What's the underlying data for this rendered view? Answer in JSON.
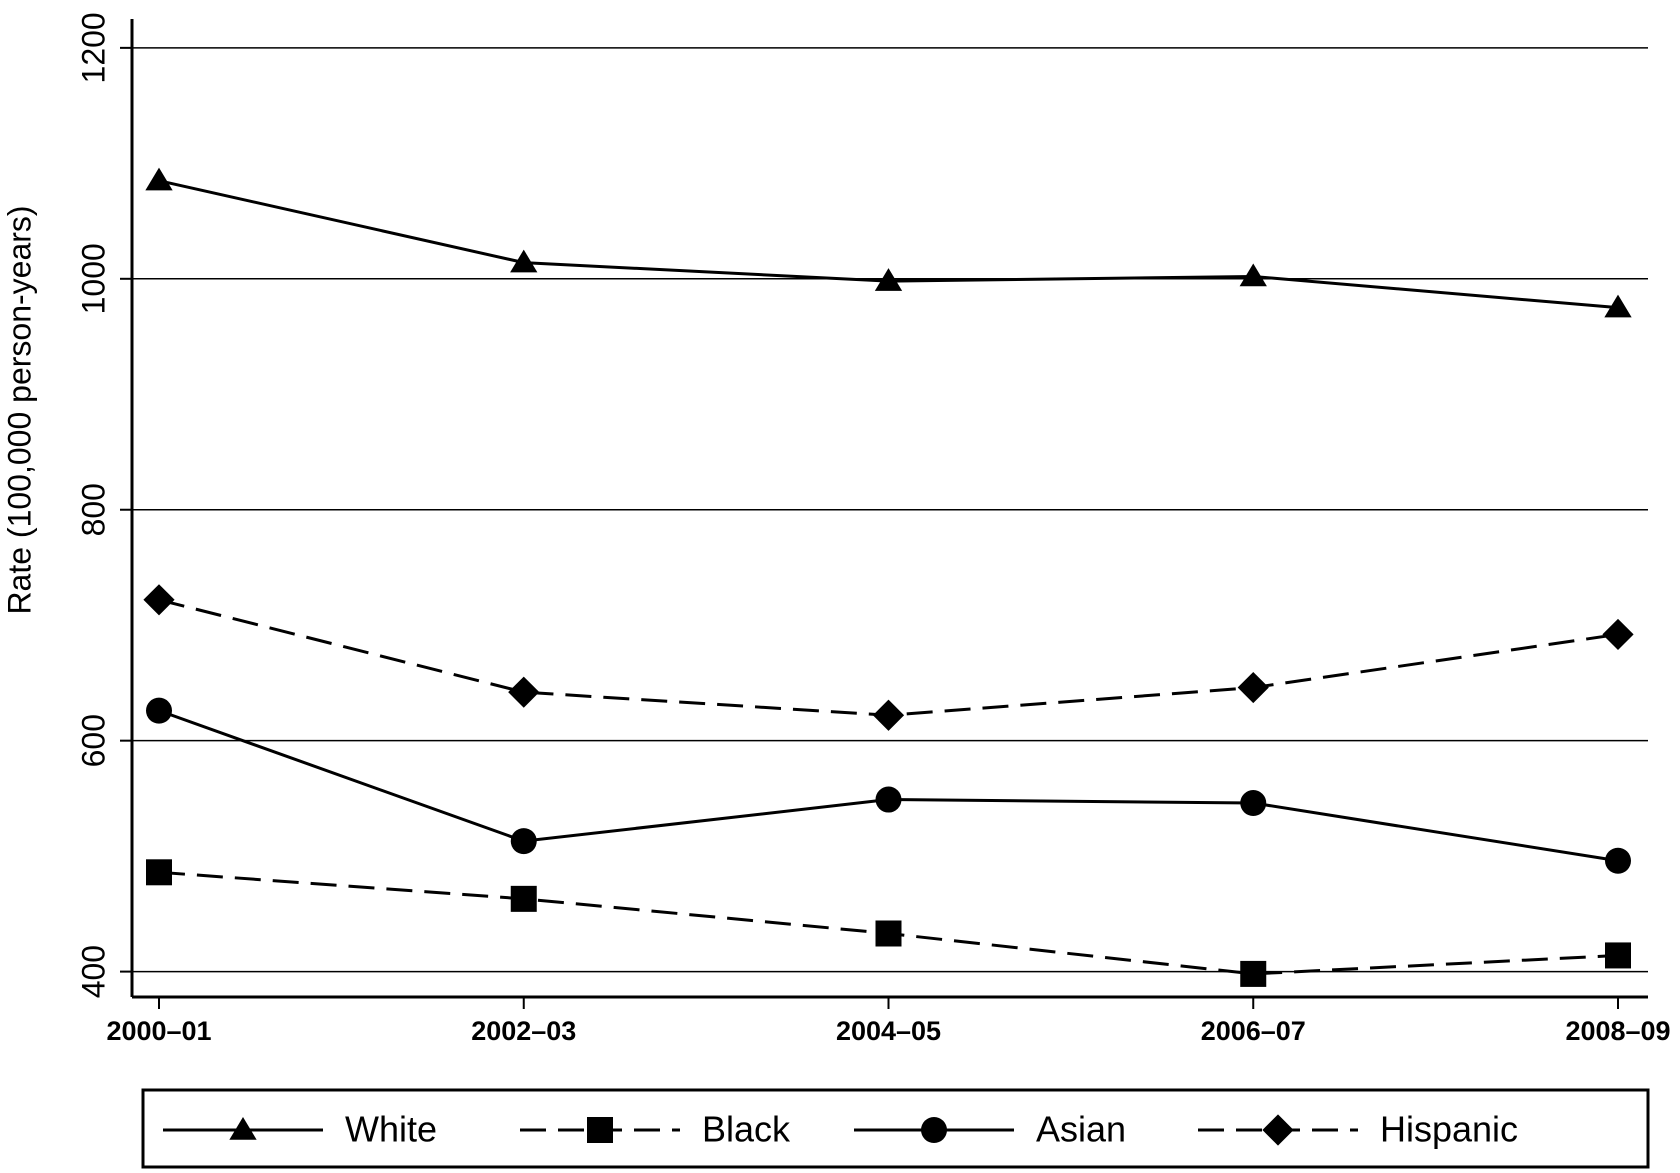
{
  "chart_data": {
    "type": "line",
    "y_label": "Rate (100,000 person-years)",
    "categories": [
      "2000–01",
      "2002–03",
      "2004–05",
      "2006–07",
      "2008–09"
    ],
    "series": [
      {
        "name": "White",
        "color": "#000000",
        "marker": "triangle",
        "dash": false,
        "values": [
          1085,
          1014,
          998,
          1002,
          975
        ]
      },
      {
        "name": "Black",
        "color": "#000000",
        "marker": "square",
        "dash": true,
        "values": [
          486,
          463,
          433,
          398,
          414
        ]
      },
      {
        "name": "Asian",
        "color": "#000000",
        "marker": "circle",
        "dash": false,
        "values": [
          626,
          513,
          549,
          546,
          496
        ]
      },
      {
        "name": "Hispanic",
        "color": "#000000",
        "marker": "diamond",
        "dash": true,
        "values": [
          722,
          642,
          622,
          646,
          692
        ]
      }
    ],
    "ylim": [
      378,
      1225
    ],
    "yticks": [
      400,
      600,
      800,
      1000,
      1200
    ],
    "grid": true,
    "legend": "bottom"
  }
}
